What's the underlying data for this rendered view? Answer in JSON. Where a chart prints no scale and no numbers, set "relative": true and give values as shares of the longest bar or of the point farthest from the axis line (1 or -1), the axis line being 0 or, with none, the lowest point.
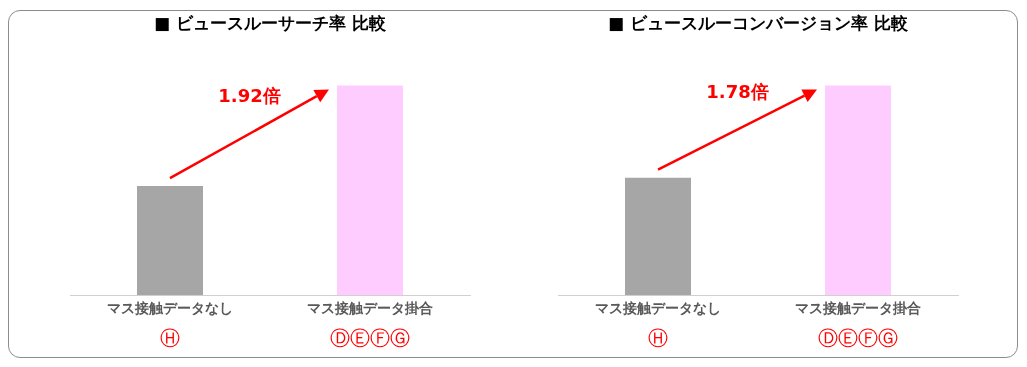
{
  "chart_data": [
    {
      "type": "bar",
      "title": "■ ビュースルーサーチ率 比較",
      "categories": [
        "マス接触データなし",
        "マス接触データ掛合"
      ],
      "relative": true,
      "series": [
        {
          "values": [
            0.52,
            1
          ],
          "colors": [
            "#a6a6a6",
            "#ffccff"
          ]
        }
      ],
      "annotations": [
        "1.92倍",
        "Ⓗ",
        "ⒹⒺⒻⒼ"
      ],
      "legend": false,
      "grid": false
    },
    {
      "type": "bar",
      "title": "■ ビュースルーコンバージョン率 比較",
      "categories": [
        "マス接触データなし",
        "マス接触データ掛合"
      ],
      "relative": true,
      "series": [
        {
          "values": [
            0.56,
            1
          ],
          "colors": [
            "#a6a6a6",
            "#ffccff"
          ]
        }
      ],
      "annotations": [
        "1.78倍",
        "Ⓗ",
        "ⒹⒺⒻⒼ"
      ],
      "legend": false,
      "grid": false
    }
  ]
}
